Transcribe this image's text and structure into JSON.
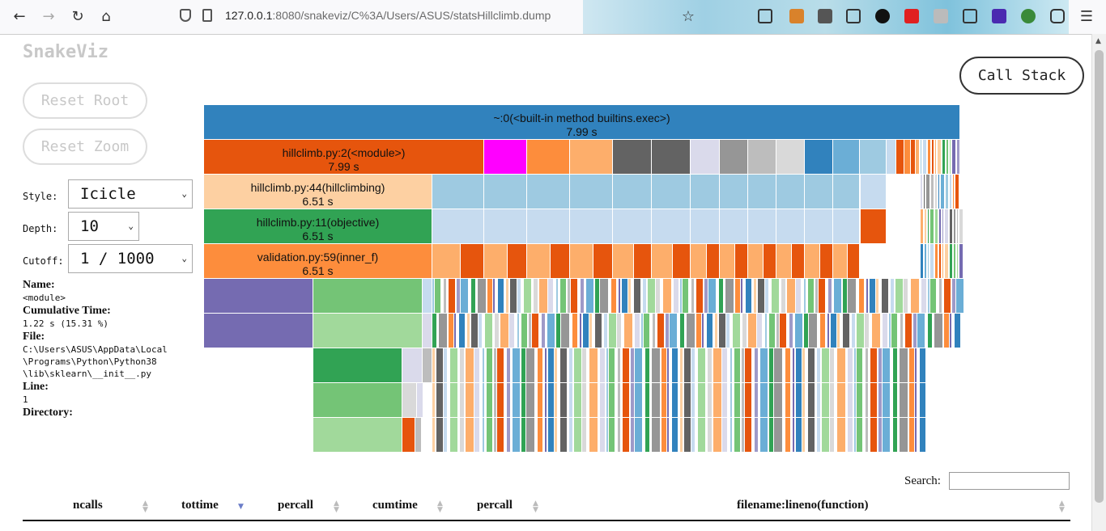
{
  "browser": {
    "url_host": "127.0.0.1",
    "url_rest": ":8080/snakeviz/C%3A/Users/ASUS/statsHillclimb.dump"
  },
  "app": {
    "logo": "SnakeViz",
    "reset_root": "Reset Root",
    "reset_zoom": "Reset Zoom",
    "call_stack": "Call Stack"
  },
  "controls": {
    "style_label": "Style:",
    "style_value": "Icicle",
    "depth_label": "Depth:",
    "depth_value": "10",
    "cutoff_label": "Cutoff:",
    "cutoff_value": "1 / 1000"
  },
  "info": {
    "name_label": "Name:",
    "name_value": "<module>",
    "cumtime_label": "Cumulative Time:",
    "cumtime_value": "1.22 s (15.31 %)",
    "file_label": "File:",
    "file_value": "C:\\Users\\ASUS\\AppData\\Local\n\\Programs\\Python\\Python38\n\\lib\\sklearn\\__init__.py",
    "line_label": "Line:",
    "line_value": "1",
    "dir_label": "Directory:"
  },
  "icicle_rows": [
    {
      "name": "~:0(<built-in method builtins.exec>)",
      "time": "7.99 s",
      "color": "#3182bd"
    },
    {
      "name": "hillclimb.py:2(<module>)",
      "time": "7.99 s",
      "color": "#e6550d"
    },
    {
      "name": "hillclimb.py:44(hillclimbing)",
      "time": "6.51 s",
      "color": "#fdd0a2"
    },
    {
      "name": "hillclimb.py:11(objective)",
      "time": "6.51 s",
      "color": "#31a354"
    },
    {
      "name": "validation.py:59(inner_f)",
      "time": "6.51 s",
      "color": "#fd8d3c"
    }
  ],
  "table": {
    "search_label": "Search:",
    "columns": [
      {
        "label": "ncalls"
      },
      {
        "label": "tottime"
      },
      {
        "label": "percall"
      },
      {
        "label": "cumtime"
      },
      {
        "label": "percall"
      },
      {
        "label": "filename:lineno(function)"
      }
    ]
  }
}
